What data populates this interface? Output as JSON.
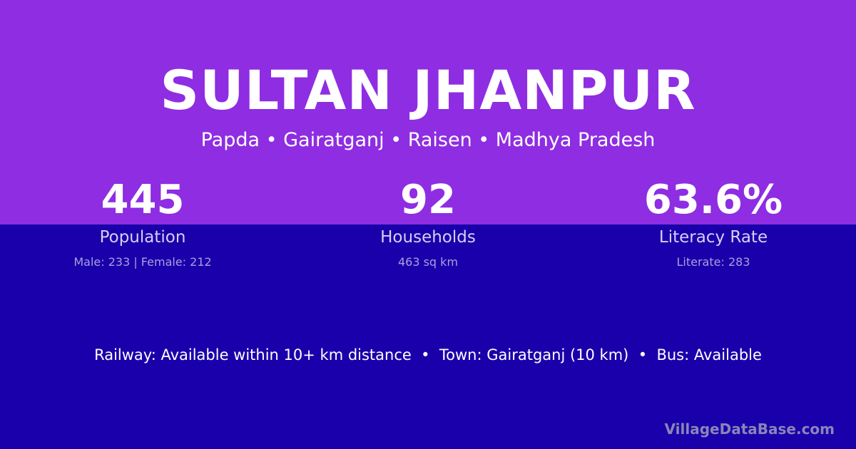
{
  "header": {
    "title": "SULTAN JHANPUR",
    "location": "Papda • Gairatganj • Raisen • Madhya Pradesh"
  },
  "stats": [
    {
      "value": "445",
      "label": "Population",
      "detail": "Male: 233 | Female: 212"
    },
    {
      "value": "92",
      "label": "Households",
      "detail": "463 sq km"
    },
    {
      "value": "63.6%",
      "label": "Literacy Rate",
      "detail": "Literate: 283"
    }
  ],
  "facts": "Railway: Available within 10+ km distance  •  Town: Gairatganj (10 km)  •  Bus: Available",
  "brand": "VillageDataBase.com",
  "colors": {
    "top": "#8e2de2",
    "bottom": "#1a00aa"
  }
}
